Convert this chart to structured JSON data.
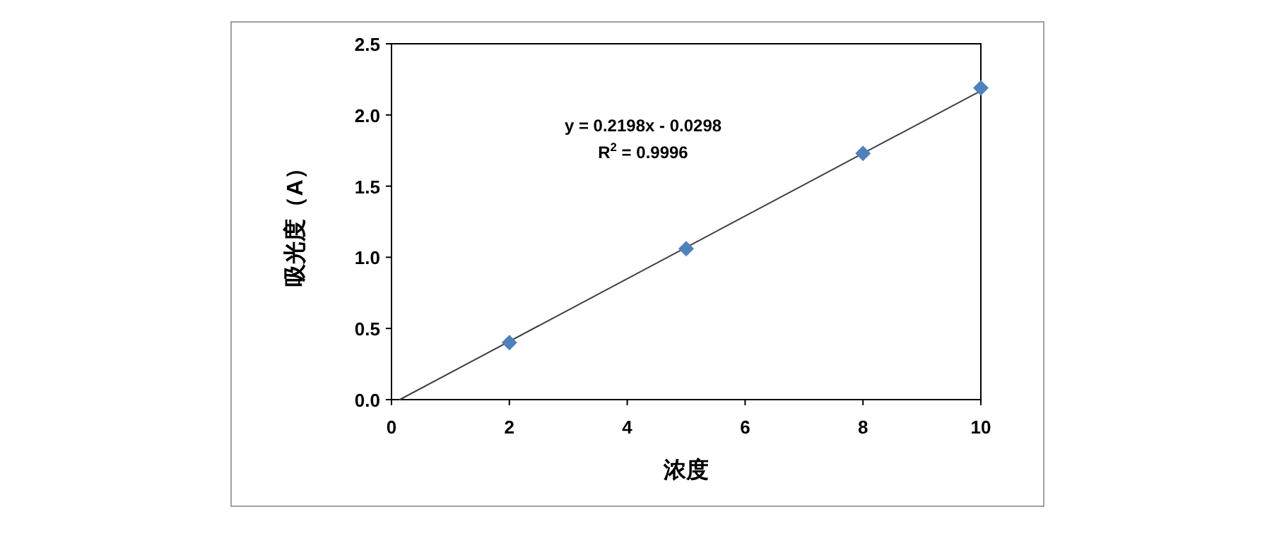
{
  "chart_data": {
    "type": "scatter",
    "xlabel": "浓度",
    "ylabel": "吸光度（A）",
    "annotations": [
      "y = 0.2198x - 0.0298",
      "R$^{2}$ = 0.9996"
    ],
    "series": [
      {
        "type": "scatter",
        "color": "#4f81bd",
        "marker": "diamond",
        "x": [
          2,
          5,
          8,
          10
        ],
        "values": [
          0.4,
          1.06,
          1.73,
          2.19
        ]
      },
      {
        "type": "line",
        "color": "#404040",
        "marker": "none",
        "line_style": "solid",
        "x": [
          0.14,
          10
        ],
        "values": [
          0,
          2.17
        ]
      }
    ],
    "xlim": [
      0,
      10
    ],
    "xticks": [
      0,
      2,
      4,
      6,
      8,
      10
    ],
    "ylim": [
      0,
      2.5
    ],
    "yticks": [
      {
        "value": 0,
        "label": "0.0"
      },
      0.5,
      {
        "value": 1,
        "label": "1.0"
      },
      1.5,
      {
        "value": 2,
        "label": "2.0"
      },
      2.5
    ],
    "grid": false
  }
}
